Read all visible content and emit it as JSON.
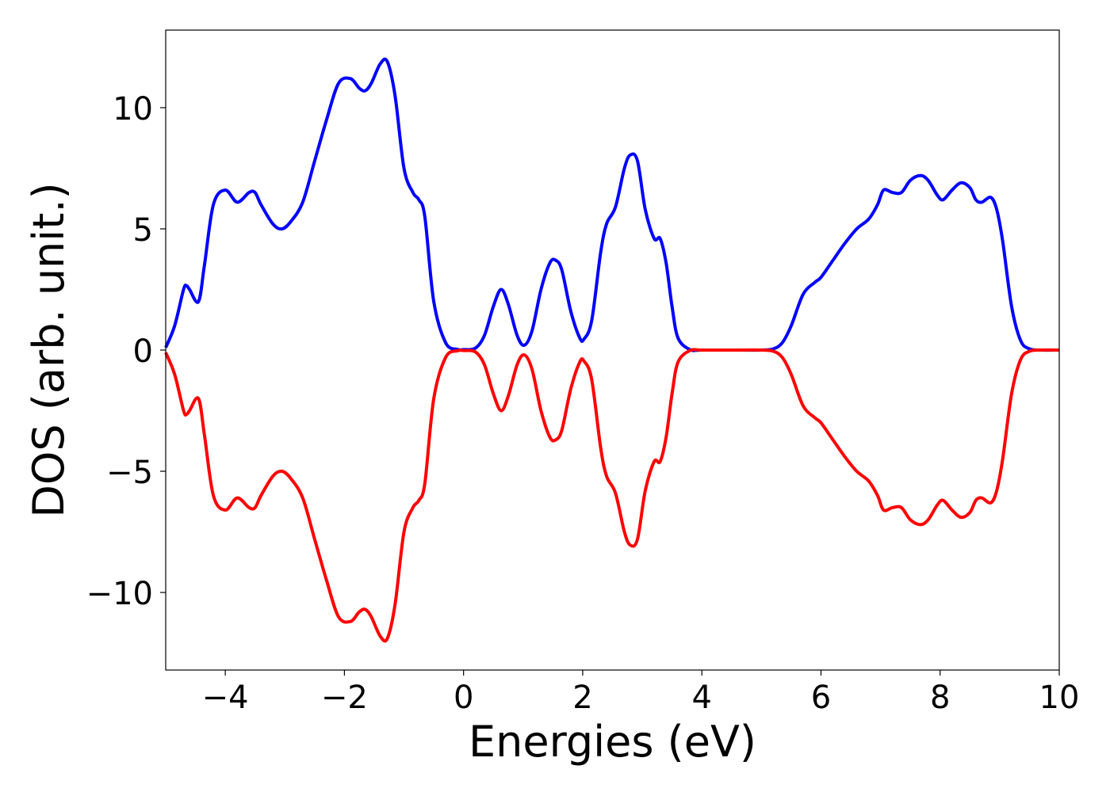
{
  "chart_data": {
    "type": "line",
    "title": "",
    "xlabel": "Energies (eV)",
    "ylabel": "DOS (arb. unit.)",
    "xlim": [
      -5,
      10
    ],
    "ylim": [
      -13.2,
      13.2
    ],
    "grid": false,
    "legend": "none",
    "x_ticks": [
      {
        "value": -4,
        "label": "−4"
      },
      {
        "value": -2,
        "label": "−2"
      },
      {
        "value": 0,
        "label": "0"
      },
      {
        "value": 2,
        "label": "2"
      },
      {
        "value": 4,
        "label": "4"
      },
      {
        "value": 6,
        "label": "6"
      },
      {
        "value": 8,
        "label": "8"
      },
      {
        "value": 10,
        "label": "10"
      }
    ],
    "y_ticks": [
      {
        "value": 10,
        "label": "10"
      },
      {
        "value": 5,
        "label": "5"
      },
      {
        "value": 0,
        "label": "0"
      },
      {
        "value": -5,
        "label": "−5"
      },
      {
        "value": -10,
        "label": "−10"
      }
    ],
    "series": [
      {
        "color": "#0000ff",
        "x": [
          -5.0,
          -4.85,
          -4.7,
          -4.65,
          -4.6,
          -4.45,
          -4.35,
          -4.2,
          -4.0,
          -3.8,
          -3.6,
          -3.5,
          -3.4,
          -3.2,
          -3.05,
          -2.9,
          -2.7,
          -2.5,
          -2.3,
          -2.1,
          -1.9,
          -1.75,
          -1.65,
          -1.55,
          -1.4,
          -1.28,
          -1.15,
          -1.0,
          -0.85,
          -0.75,
          -0.65,
          -0.5,
          -0.3,
          -0.1,
          0.0,
          0.2,
          0.35,
          0.5,
          0.63,
          0.75,
          0.9,
          1.02,
          1.15,
          1.3,
          1.45,
          1.55,
          1.65,
          1.8,
          1.95,
          2.02,
          2.15,
          2.3,
          2.4,
          2.55,
          2.7,
          2.8,
          2.92,
          3.05,
          3.2,
          3.3,
          3.4,
          3.5,
          3.6,
          3.8,
          4.0,
          4.5,
          5.0,
          5.2,
          5.35,
          5.5,
          5.7,
          5.9,
          6.0,
          6.2,
          6.4,
          6.6,
          6.8,
          6.95,
          7.05,
          7.2,
          7.35,
          7.5,
          7.67,
          7.8,
          7.95,
          8.05,
          8.2,
          8.35,
          8.5,
          8.6,
          8.7,
          8.85,
          8.95,
          9.05,
          9.2,
          9.35,
          9.5,
          9.7,
          10.0
        ],
        "y": [
          0.1,
          1.0,
          2.5,
          2.65,
          2.5,
          2.0,
          3.5,
          6.0,
          6.6,
          6.1,
          6.5,
          6.5,
          6.0,
          5.2,
          5.0,
          5.3,
          6.1,
          7.8,
          9.5,
          11.0,
          11.2,
          10.8,
          10.7,
          11.0,
          11.8,
          11.9,
          10.5,
          7.5,
          6.5,
          6.2,
          5.5,
          2.0,
          0.3,
          0.03,
          0.02,
          0.08,
          0.6,
          1.8,
          2.5,
          1.9,
          0.6,
          0.2,
          0.8,
          2.5,
          3.6,
          3.7,
          3.3,
          1.6,
          0.5,
          0.45,
          1.2,
          4.0,
          5.2,
          5.9,
          7.5,
          8.05,
          7.8,
          5.8,
          4.6,
          4.6,
          3.6,
          1.8,
          0.5,
          0.02,
          0.0,
          0.0,
          0.0,
          0.05,
          0.3,
          1.0,
          2.3,
          2.8,
          3.0,
          3.7,
          4.4,
          5.0,
          5.4,
          6.0,
          6.6,
          6.5,
          6.5,
          7.0,
          7.2,
          7.0,
          6.4,
          6.2,
          6.6,
          6.9,
          6.7,
          6.2,
          6.1,
          6.3,
          5.8,
          4.5,
          1.8,
          0.4,
          0.05,
          0.0,
          0.0
        ]
      },
      {
        "color": "#ff0000",
        "x": [
          -5.0,
          -4.85,
          -4.7,
          -4.65,
          -4.6,
          -4.45,
          -4.35,
          -4.2,
          -4.0,
          -3.8,
          -3.6,
          -3.5,
          -3.4,
          -3.2,
          -3.05,
          -2.9,
          -2.7,
          -2.5,
          -2.3,
          -2.1,
          -1.9,
          -1.75,
          -1.65,
          -1.55,
          -1.4,
          -1.28,
          -1.15,
          -1.0,
          -0.85,
          -0.75,
          -0.65,
          -0.5,
          -0.3,
          -0.1,
          0.0,
          0.2,
          0.35,
          0.5,
          0.63,
          0.75,
          0.9,
          1.02,
          1.15,
          1.3,
          1.45,
          1.55,
          1.65,
          1.8,
          1.95,
          2.02,
          2.15,
          2.3,
          2.4,
          2.55,
          2.7,
          2.8,
          2.92,
          3.05,
          3.2,
          3.3,
          3.4,
          3.5,
          3.6,
          3.8,
          4.0,
          4.5,
          5.0,
          5.2,
          5.35,
          5.5,
          5.7,
          5.9,
          6.0,
          6.2,
          6.4,
          6.6,
          6.8,
          6.95,
          7.05,
          7.2,
          7.35,
          7.5,
          7.67,
          7.8,
          7.95,
          8.05,
          8.2,
          8.35,
          8.5,
          8.6,
          8.7,
          8.85,
          8.95,
          9.05,
          9.2,
          9.35,
          9.5,
          9.7,
          10.0
        ],
        "y": [
          -0.1,
          -1.0,
          -2.5,
          -2.65,
          -2.5,
          -2.0,
          -3.5,
          -6.0,
          -6.6,
          -6.1,
          -6.5,
          -6.5,
          -6.0,
          -5.2,
          -5.0,
          -5.3,
          -6.1,
          -7.8,
          -9.5,
          -11.0,
          -11.2,
          -10.8,
          -10.7,
          -11.0,
          -11.8,
          -11.9,
          -10.5,
          -7.5,
          -6.5,
          -6.2,
          -5.5,
          -2.0,
          -0.3,
          -0.03,
          -0.02,
          -0.08,
          -0.6,
          -1.8,
          -2.5,
          -1.9,
          -0.6,
          -0.2,
          -0.8,
          -2.5,
          -3.6,
          -3.7,
          -3.3,
          -1.6,
          -0.5,
          -0.45,
          -1.2,
          -4.0,
          -5.2,
          -5.9,
          -7.5,
          -8.05,
          -7.8,
          -5.8,
          -4.6,
          -4.6,
          -3.6,
          -1.8,
          -0.5,
          -0.02,
          0.0,
          0.0,
          0.0,
          -0.05,
          -0.3,
          -1.0,
          -2.3,
          -2.8,
          -3.0,
          -3.7,
          -4.4,
          -5.0,
          -5.4,
          -6.0,
          -6.6,
          -6.5,
          -6.5,
          -7.0,
          -7.2,
          -7.0,
          -6.4,
          -6.2,
          -6.6,
          -6.9,
          -6.7,
          -6.2,
          -6.1,
          -6.3,
          -5.8,
          -4.5,
          -1.8,
          -0.4,
          -0.05,
          0.0,
          0.0
        ]
      }
    ]
  }
}
